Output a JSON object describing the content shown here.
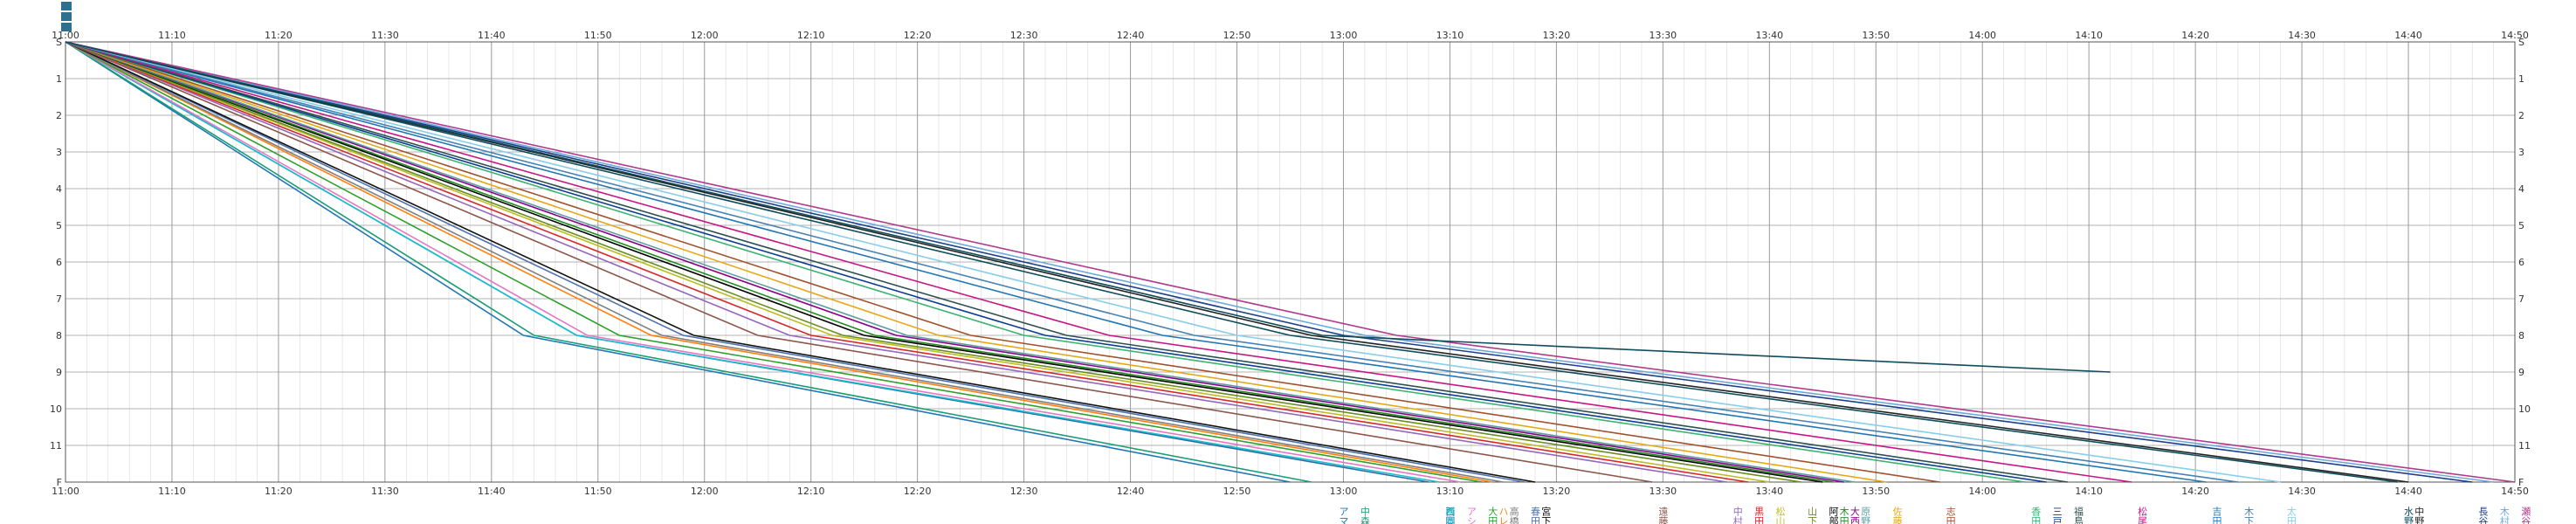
{
  "chart_data": {
    "type": "line",
    "xlim": [
      "11:00",
      "14:50"
    ],
    "x_ticks": [
      "11:00",
      "11:10",
      "11:20",
      "11:30",
      "11:40",
      "11:50",
      "12:00",
      "12:10",
      "12:20",
      "12:30",
      "12:40",
      "12:50",
      "13:00",
      "13:10",
      "13:20",
      "13:30",
      "13:40",
      "13:50",
      "14:00",
      "14:10",
      "14:20",
      "14:30",
      "14:40",
      "14:50"
    ],
    "y_stations": [
      "S",
      "1",
      "2",
      "3",
      "4",
      "5",
      "6",
      "7",
      "8",
      "9",
      "10",
      "11",
      "F"
    ],
    "grid": true,
    "colors": {
      "axis": "#555555",
      "grid_minor": "#d9d9d9",
      "grid_major": "#9a9a9a",
      "legend_box": "#2f6f8f"
    },
    "series": [
      {
        "name": "アマン",
        "color": "#1f77b4",
        "finish": "13:00",
        "points": [
          [
            "11:00",
            0
          ],
          [
            "11:43",
            8
          ],
          [
            "12:55",
            12
          ]
        ]
      },
      {
        "name": "中森大",
        "color": "#1a9e77",
        "finish": "13:02",
        "points": [
          [
            "11:00",
            0
          ],
          [
            "11:44",
            8
          ],
          [
            "12:57",
            12
          ]
        ]
      },
      {
        "name": "西岡誠",
        "color": "#2d6ca2",
        "finish": "13:10",
        "points": [
          [
            "11:00",
            0
          ],
          [
            "11:48",
            8
          ],
          [
            "13:08",
            12
          ]
        ]
      },
      {
        "name": "橋本修",
        "color": "#17becf",
        "finish": "13:10",
        "points": [
          [
            "11:00",
            0
          ],
          [
            "11:48",
            8
          ],
          [
            "13:09",
            12
          ]
        ]
      },
      {
        "name": "アシュ",
        "color": "#e377c2",
        "finish": "13:12",
        "points": [
          [
            "11:00",
            0
          ],
          [
            "11:49",
            8
          ],
          [
            "13:11",
            12
          ]
        ]
      },
      {
        "name": "大田竜",
        "color": "#2ca02c",
        "finish": "13:14",
        "points": [
          [
            "11:00",
            0
          ],
          [
            "11:52",
            8
          ],
          [
            "13:13",
            12
          ]
        ]
      },
      {
        "name": "ハレッ",
        "color": "#ff7f0e",
        "finish": "13:15",
        "points": [
          [
            "11:00",
            0
          ],
          [
            "11:55",
            8
          ],
          [
            "13:14",
            12
          ]
        ]
      },
      {
        "name": "高橋徳",
        "color": "#7f7f7f",
        "finish": "13:16",
        "points": [
          [
            "11:00",
            0
          ],
          [
            "11:56",
            8
          ],
          [
            "13:15",
            12
          ]
        ]
      },
      {
        "name": "春田恵",
        "color": "#4c72b0",
        "finish": "13:18",
        "points": [
          [
            "11:00",
            0
          ],
          [
            "11:58",
            8
          ],
          [
            "13:17",
            12
          ]
        ]
      },
      {
        "name": "宮下",
        "color": "#111111",
        "finish": "13:19",
        "points": [
          [
            "11:00",
            0
          ],
          [
            "11:59",
            8
          ],
          [
            "13:18",
            12
          ]
        ]
      },
      {
        "name": "遠藤大",
        "color": "#8c564b",
        "finish": "13:30",
        "points": [
          [
            "11:00",
            0
          ],
          [
            "12:05",
            8
          ],
          [
            "13:29",
            12
          ]
        ]
      },
      {
        "name": "中村大",
        "color": "#9467bd",
        "finish": "13:37",
        "points": [
          [
            "11:00",
            0
          ],
          [
            "12:08",
            8
          ],
          [
            "13:36",
            12
          ]
        ]
      },
      {
        "name": "黒田静",
        "color": "#d62728",
        "finish": "13:39",
        "points": [
          [
            "11:00",
            0
          ],
          [
            "12:10",
            8
          ],
          [
            "13:38",
            12
          ]
        ]
      },
      {
        "name": "松山祥",
        "color": "#bcbd22",
        "finish": "13:41",
        "points": [
          [
            "11:00",
            0
          ],
          [
            "12:12",
            8
          ],
          [
            "13:40",
            12
          ]
        ]
      },
      {
        "name": "山下鉄",
        "color": "#6b8e23",
        "finish": "13:44",
        "points": [
          [
            "11:00",
            0
          ],
          [
            "12:13",
            8
          ],
          [
            "13:43",
            12
          ]
        ]
      },
      {
        "name": "阿部亮",
        "color": "#000000",
        "finish": "13:46",
        "points": [
          [
            "11:00",
            0
          ],
          [
            "12:15",
            8
          ],
          [
            "13:45",
            12
          ]
        ]
      },
      {
        "name": "木田武",
        "color": "#228b22",
        "finish": "13:47",
        "points": [
          [
            "11:00",
            0
          ],
          [
            "12:16",
            8
          ],
          [
            "13:46",
            12
          ]
        ]
      },
      {
        "name": "大西直",
        "color": "#8b008b",
        "finish": "13:48",
        "points": [
          [
            "11:00",
            0
          ],
          [
            "12:18",
            8
          ],
          [
            "13:47",
            12
          ]
        ]
      },
      {
        "name": "原野実",
        "color": "#5f9ea0",
        "finish": "13:49",
        "points": [
          [
            "11:00",
            0
          ],
          [
            "12:19",
            8
          ],
          [
            "13:48",
            12
          ]
        ]
      },
      {
        "name": "佐藤博",
        "color": "#e6a817",
        "finish": "13:52",
        "points": [
          [
            "11:00",
            0
          ],
          [
            "12:22",
            8
          ],
          [
            "13:51",
            12
          ]
        ]
      },
      {
        "name": "志田貢",
        "color": "#a0522d",
        "finish": "13:57",
        "points": [
          [
            "11:00",
            0
          ],
          [
            "12:25",
            8
          ],
          [
            "13:56",
            12
          ]
        ]
      },
      {
        "name": "香田陽",
        "color": "#3cb371",
        "finish": "14:05",
        "points": [
          [
            "11:00",
            0
          ],
          [
            "12:30",
            8
          ],
          [
            "14:04",
            12
          ]
        ]
      },
      {
        "name": "三戸祐",
        "color": "#0b3d91",
        "finish": "14:07",
        "points": [
          [
            "11:00",
            0
          ],
          [
            "12:32",
            8
          ],
          [
            "14:06",
            12
          ]
        ]
      },
      {
        "name": "福島秀",
        "color": "#2f4f4f",
        "finish": "14:09",
        "points": [
          [
            "11:00",
            0
          ],
          [
            "12:34",
            8
          ],
          [
            "14:08",
            12
          ]
        ]
      },
      {
        "name": "松尾寛",
        "color": "#c71585",
        "finish": "14:15",
        "points": [
          [
            "11:00",
            0
          ],
          [
            "12:38",
            8
          ],
          [
            "14:14",
            12
          ]
        ]
      },
      {
        "name": "吉田史",
        "color": "#1f77b4",
        "finish": "14:22",
        "points": [
          [
            "11:00",
            0
          ],
          [
            "12:43",
            8
          ],
          [
            "14:21",
            12
          ]
        ]
      },
      {
        "name": "木下剛",
        "color": "#4682b4",
        "finish": "14:25",
        "points": [
          [
            "11:00",
            0
          ],
          [
            "12:46",
            8
          ],
          [
            "14:24",
            12
          ]
        ]
      },
      {
        "name": "太田洋",
        "color": "#87ceeb",
        "finish": "14:29",
        "points": [
          [
            "11:00",
            0
          ],
          [
            "12:50",
            8
          ],
          [
            "14:28",
            12
          ]
        ]
      },
      {
        "name": "水野龍",
        "color": "#0e4d5c",
        "finish": "14:40",
        "points": [
          [
            "11:00",
            0
          ],
          [
            "12:55",
            8
          ],
          [
            "14:39",
            12
          ]
        ]
      },
      {
        "name": "中野真",
        "color": "#222222",
        "finish": "14:41",
        "points": [
          [
            "11:00",
            0
          ],
          [
            "12:57",
            8
          ],
          [
            "14:40",
            12
          ]
        ]
      },
      {
        "name": "長谷和",
        "color": "#1e3f8a",
        "finish": "14:47",
        "points": [
          [
            "11:00",
            0
          ],
          [
            "13:00",
            8
          ],
          [
            "14:46",
            12
          ]
        ]
      },
      {
        "name": "木村優",
        "color": "#6fa8dc",
        "finish": "14:49",
        "points": [
          [
            "11:00",
            0
          ],
          [
            "13:02",
            8
          ],
          [
            "14:48",
            12
          ]
        ]
      },
      {
        "name": "瀬谷一",
        "color": "#b03a8c",
        "finish": "14:51",
        "points": [
          [
            "11:00",
            0
          ],
          [
            "13:05",
            8
          ],
          [
            "14:50",
            12
          ]
        ]
      },
      {
        "name": "",
        "color": "#0f4c5c",
        "finish": "",
        "points": [
          [
            "11:00",
            0
          ],
          [
            "12:58",
            8
          ],
          [
            "14:12",
            9
          ]
        ]
      }
    ]
  }
}
